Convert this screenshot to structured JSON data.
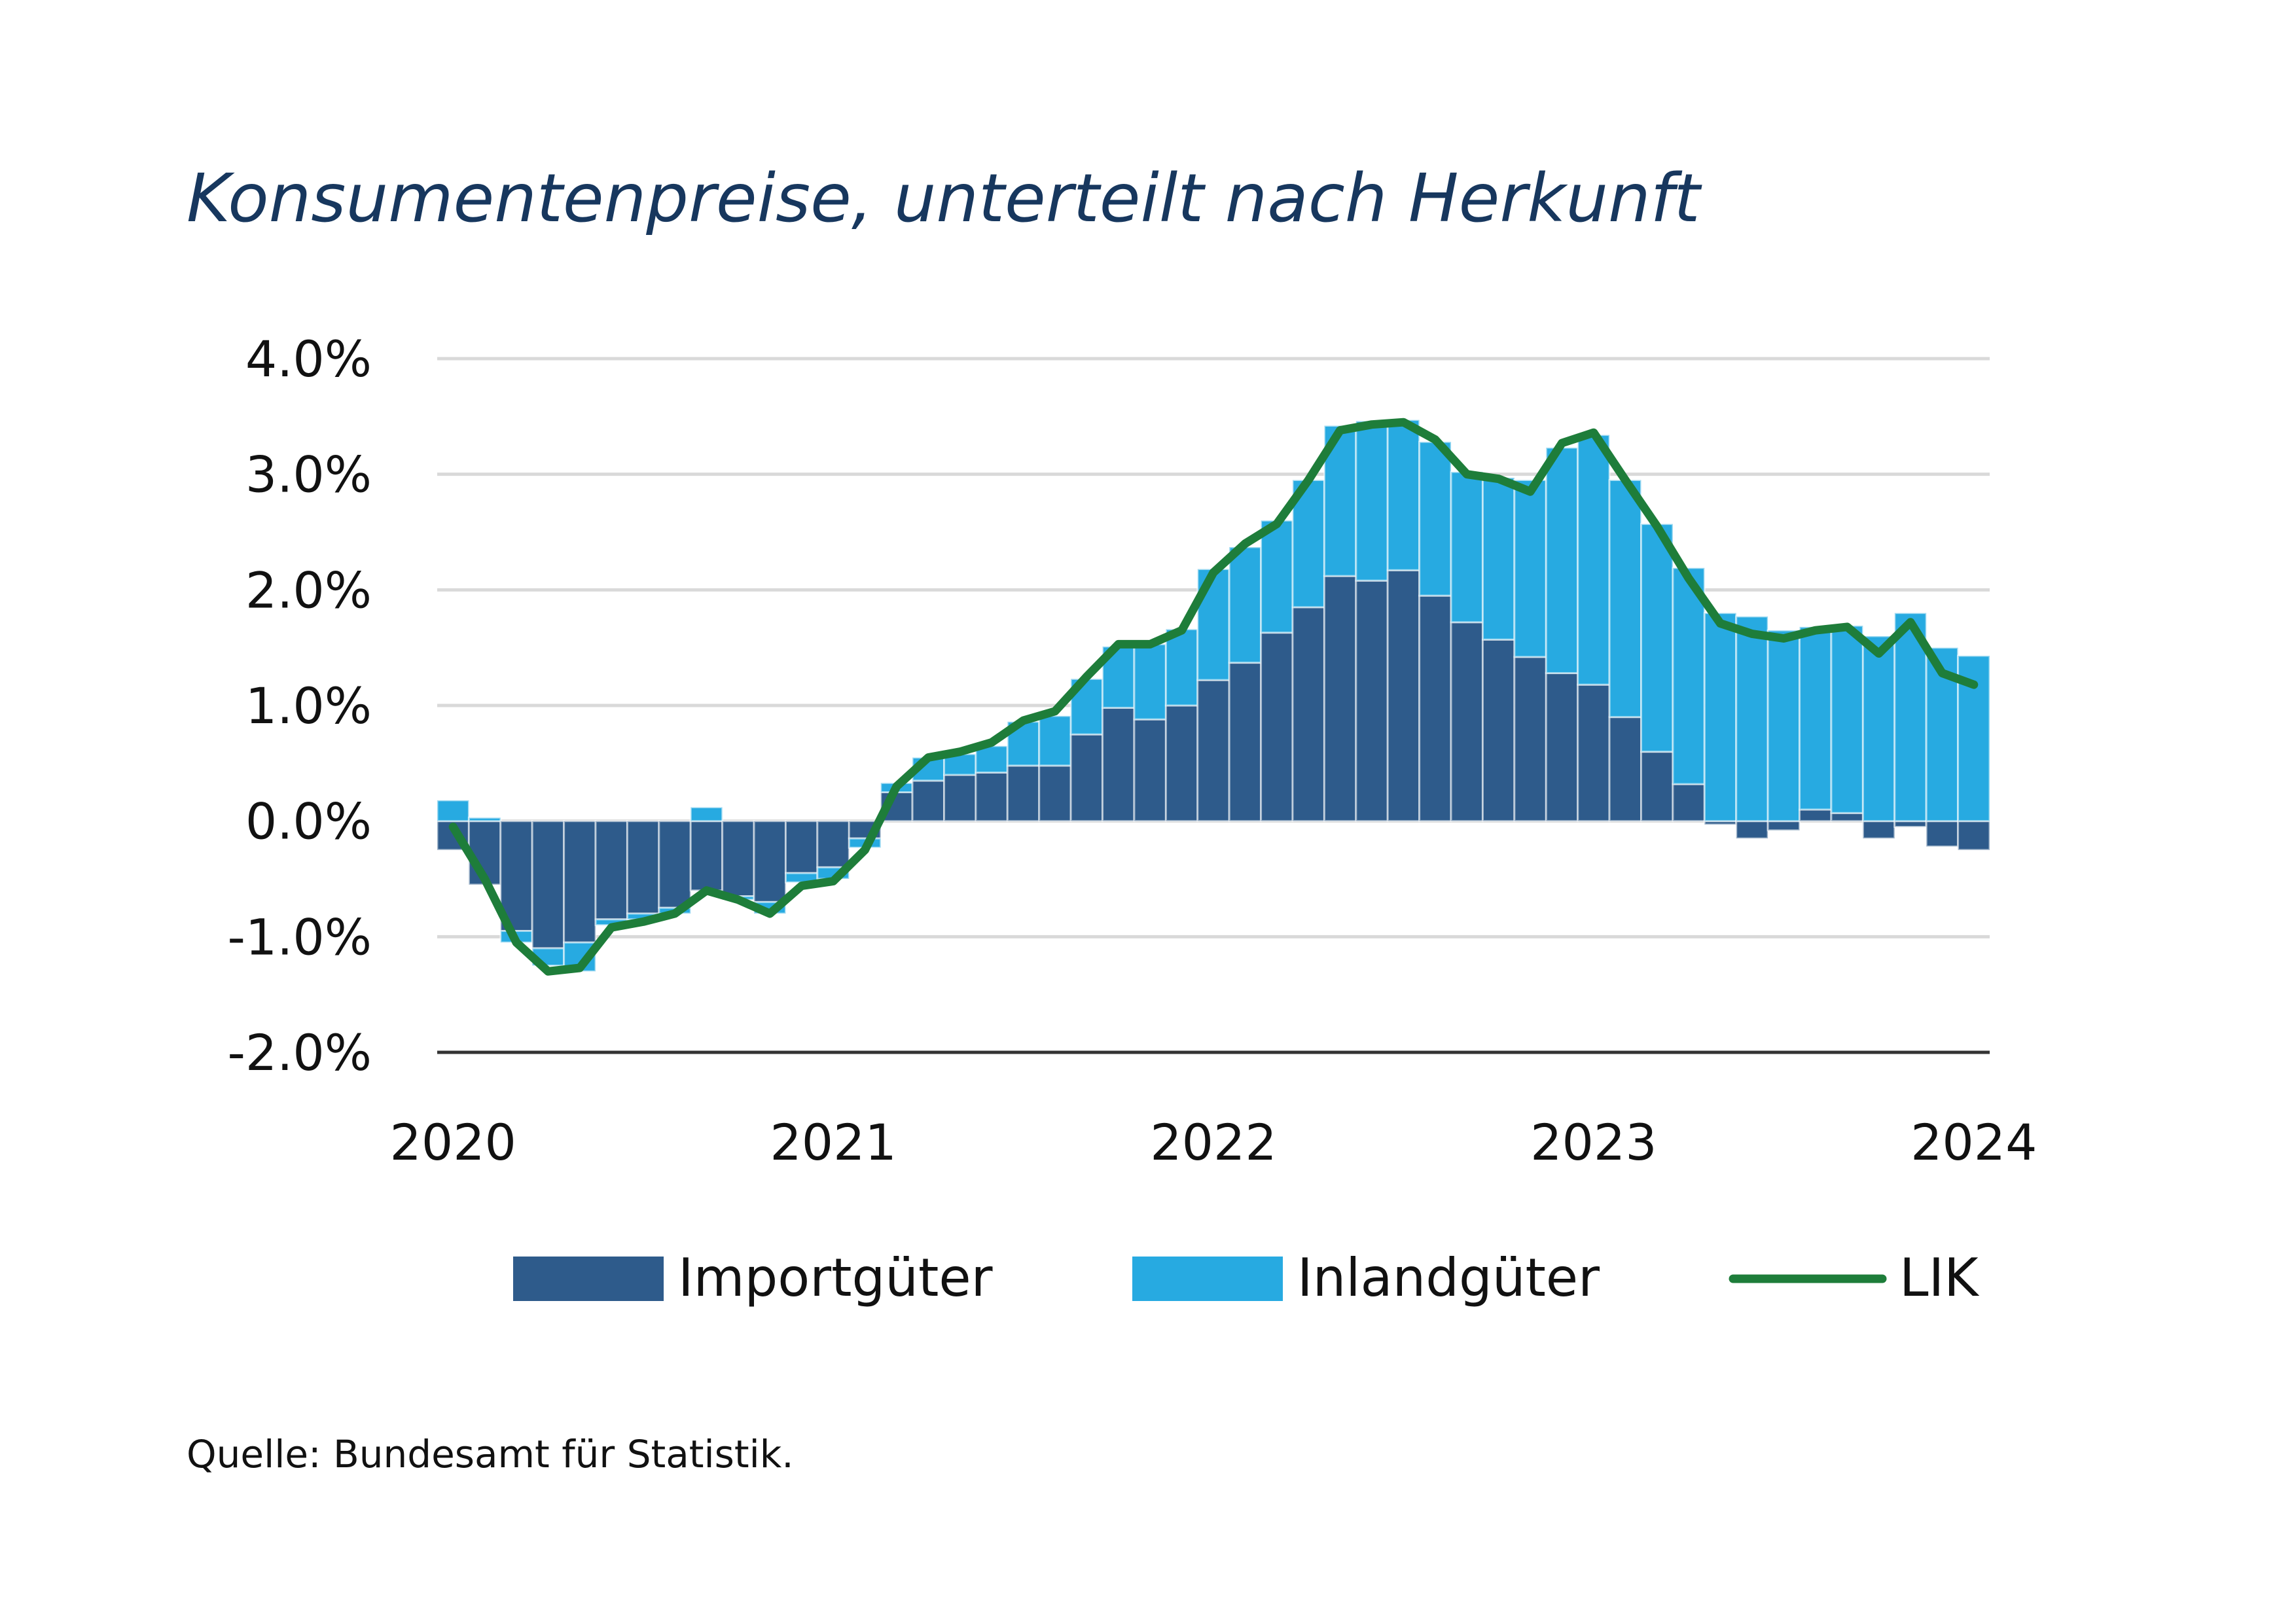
{
  "chart_data": {
    "type": "bar",
    "stacked": true,
    "title": "Konsumentenpreise, unterteilt nach Herkunft",
    "source": "Quelle: Bundesamt für Statistik.",
    "xlabel": "",
    "ylabel": "",
    "y_ticks": [
      4.0,
      3.0,
      2.0,
      1.0,
      0.0,
      -1.0,
      -2.0
    ],
    "y_tick_labels": [
      "4.0%",
      "3.0%",
      "2.0%",
      "1.0%",
      "0.0%",
      "-1.0%",
      "-2.0%"
    ],
    "ylim": [
      -2.0,
      4.0
    ],
    "x_tick_labels": [
      "2020",
      "2021",
      "2022",
      "2023",
      "2024"
    ],
    "x_tick_positions": [
      0,
      12,
      24,
      36,
      48
    ],
    "grid": true,
    "legend": [
      "Importgüter",
      "Inlandgüter",
      "LIK"
    ],
    "legend_position": "bottom",
    "colors": {
      "Importgüter": "#2e5b8b",
      "Inlandgüter": "#27aae1",
      "LIK": "#1e7d3a",
      "grid": "#d9d9d9",
      "axis": "#333333",
      "title": "#17375e"
    },
    "series": [
      {
        "name": "Importgüter",
        "kind": "bar",
        "values": [
          -0.25,
          -0.55,
          -0.95,
          -1.1,
          -1.05,
          -0.85,
          -0.8,
          -0.75,
          -0.6,
          -0.65,
          -0.7,
          -0.45,
          -0.4,
          -0.15,
          0.25,
          0.35,
          0.4,
          0.42,
          0.48,
          0.48,
          0.75,
          0.98,
          0.88,
          1.0,
          1.22,
          1.37,
          1.63,
          1.85,
          2.12,
          2.08,
          2.17,
          1.95,
          1.72,
          1.57,
          1.42,
          1.28,
          1.18,
          0.9,
          0.6,
          0.32,
          -0.03,
          -0.15,
          -0.08,
          0.1,
          0.07,
          -0.15,
          -0.05,
          -0.22,
          -0.25
        ]
      },
      {
        "name": "Inlandgüter",
        "kind": "bar",
        "values": [
          0.18,
          0.03,
          -0.1,
          -0.15,
          -0.25,
          -0.05,
          -0.05,
          -0.05,
          0.12,
          -0.03,
          -0.1,
          -0.08,
          -0.1,
          -0.08,
          0.08,
          0.2,
          0.18,
          0.23,
          0.38,
          0.43,
          0.48,
          0.53,
          0.65,
          0.66,
          0.96,
          1.0,
          0.97,
          1.1,
          1.3,
          1.38,
          1.3,
          1.33,
          1.3,
          1.4,
          1.53,
          1.95,
          2.16,
          2.05,
          1.97,
          1.87,
          1.8,
          1.77,
          1.65,
          1.58,
          1.62,
          1.6,
          1.8,
          1.5,
          1.43
        ]
      },
      {
        "name": "LIK",
        "kind": "line",
        "values": [
          -0.05,
          -0.5,
          -1.05,
          -1.3,
          -1.27,
          -0.92,
          -0.87,
          -0.8,
          -0.6,
          -0.68,
          -0.8,
          -0.56,
          -0.52,
          -0.25,
          0.3,
          0.55,
          0.6,
          0.68,
          0.87,
          0.95,
          1.25,
          1.53,
          1.53,
          1.65,
          2.15,
          2.4,
          2.57,
          2.95,
          3.38,
          3.43,
          3.45,
          3.3,
          3.0,
          2.96,
          2.85,
          3.27,
          3.36,
          2.95,
          2.55,
          2.1,
          1.71,
          1.62,
          1.58,
          1.65,
          1.68,
          1.45,
          1.72,
          1.28,
          1.18
        ]
      }
    ]
  }
}
